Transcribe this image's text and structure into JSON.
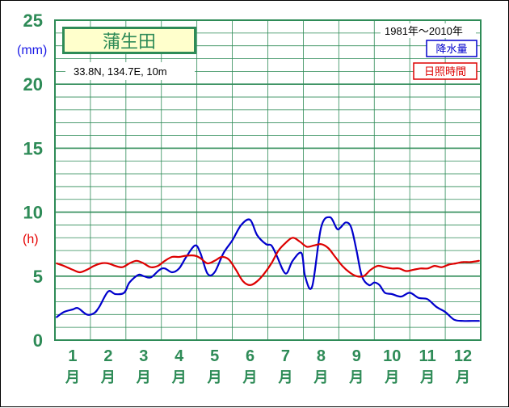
{
  "chart_data": {
    "type": "line",
    "station": "蒲生田",
    "coords": "33.8N,  134.7E,  10m",
    "period": "1981年～2010年",
    "unit_left": "(mm)",
    "unit_right": "(h)",
    "ylim": [
      0,
      25
    ],
    "yticks": [
      "0",
      "5",
      "10",
      "15",
      "20",
      "25"
    ],
    "months": [
      "1",
      "2",
      "3",
      "4",
      "5",
      "6",
      "7",
      "8",
      "9",
      "10",
      "11",
      "12"
    ],
    "month_suffix": "月",
    "x_range": [
      1,
      12
    ],
    "series": [
      {
        "name": "降水量",
        "color": "#0000cc",
        "x": [
          0.55,
          0.75,
          1.0,
          1.15,
          1.4,
          1.6,
          1.75,
          2.0,
          2.2,
          2.45,
          2.6,
          2.85,
          3.0,
          3.2,
          3.45,
          3.6,
          3.8,
          4.0,
          4.2,
          4.45,
          4.6,
          4.8,
          5.0,
          5.25,
          5.5,
          5.75,
          6.0,
          6.2,
          6.45,
          6.6,
          6.75,
          7.0,
          7.2,
          7.45,
          7.55,
          7.75,
          8.0,
          8.25,
          8.45,
          8.55,
          8.7,
          8.85,
          9.0,
          9.15,
          9.35,
          9.5,
          9.65,
          9.8,
          10.0,
          10.25,
          10.5,
          10.75,
          11.0,
          11.25,
          11.5,
          11.75,
          12.0,
          12.25,
          12.45
        ],
        "values": [
          1.8,
          2.2,
          2.4,
          2.5,
          2.0,
          2.1,
          2.6,
          3.8,
          3.6,
          3.7,
          4.5,
          5.1,
          5.0,
          4.9,
          5.5,
          5.6,
          5.3,
          5.6,
          6.5,
          7.4,
          6.8,
          5.2,
          5.3,
          6.8,
          7.8,
          9.0,
          9.4,
          8.2,
          7.5,
          7.4,
          6.6,
          5.2,
          6.2,
          6.8,
          5.0,
          4.2,
          8.8,
          9.6,
          8.7,
          8.8,
          9.2,
          8.8,
          7.0,
          5.0,
          4.3,
          4.5,
          4.3,
          3.7,
          3.6,
          3.4,
          3.7,
          3.3,
          3.2,
          2.6,
          2.2,
          1.6,
          1.5,
          1.5,
          1.5
        ]
      },
      {
        "name": "日照時間",
        "color": "#dd0000",
        "x": [
          0.55,
          0.75,
          1.0,
          1.2,
          1.4,
          1.6,
          1.8,
          2.0,
          2.2,
          2.4,
          2.6,
          2.8,
          3.0,
          3.2,
          3.4,
          3.6,
          3.8,
          4.0,
          4.2,
          4.45,
          4.6,
          4.8,
          5.0,
          5.2,
          5.4,
          5.6,
          5.8,
          6.0,
          6.2,
          6.4,
          6.6,
          6.8,
          7.0,
          7.2,
          7.4,
          7.6,
          7.8,
          8.0,
          8.2,
          8.4,
          8.6,
          8.8,
          9.0,
          9.2,
          9.4,
          9.6,
          9.8,
          10.0,
          10.2,
          10.4,
          10.6,
          10.8,
          11.0,
          11.2,
          11.4,
          11.6,
          11.8,
          12.0,
          12.2,
          12.45
        ],
        "values": [
          6.0,
          5.8,
          5.5,
          5.3,
          5.5,
          5.8,
          6.0,
          6.0,
          5.8,
          5.7,
          6.0,
          6.2,
          6.0,
          5.7,
          5.8,
          6.2,
          6.5,
          6.5,
          6.6,
          6.6,
          6.4,
          6.0,
          6.2,
          6.5,
          6.3,
          5.5,
          4.6,
          4.3,
          4.6,
          5.2,
          6.0,
          7.0,
          7.6,
          8.0,
          7.7,
          7.3,
          7.4,
          7.5,
          7.2,
          6.5,
          5.8,
          5.3,
          5.0,
          5.0,
          5.5,
          5.8,
          5.7,
          5.6,
          5.6,
          5.4,
          5.5,
          5.6,
          5.6,
          5.8,
          5.7,
          5.9,
          6.0,
          6.1,
          6.1,
          6.2
        ]
      }
    ]
  }
}
